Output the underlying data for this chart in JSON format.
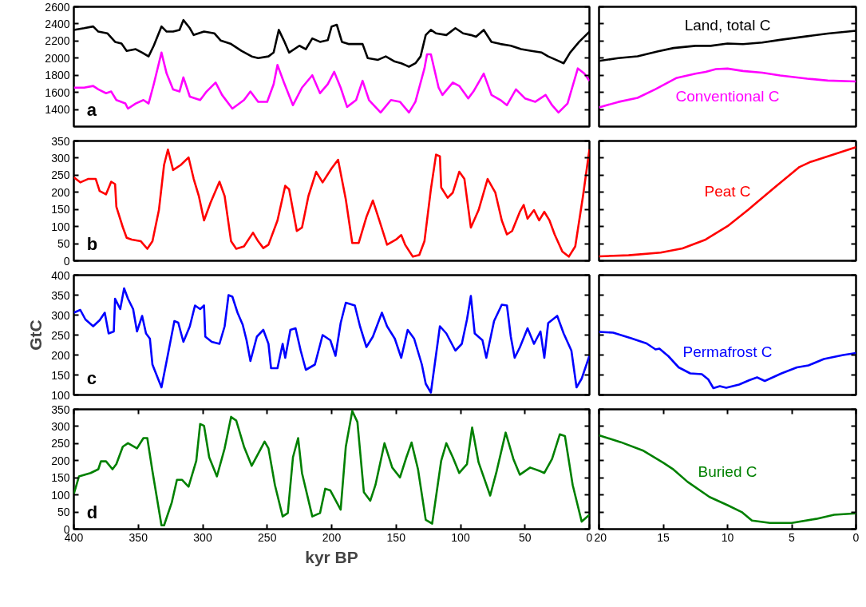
{
  "chart_data": [
    {
      "type": "line",
      "xlim": [
        400,
        0
      ],
      "ylim": [
        1200,
        2600
      ],
      "yticks": [
        1400,
        1600,
        1800,
        2000,
        2200,
        2400,
        2600
      ],
      "tick_labels": "y",
      "annotations": [
        "a"
      ],
      "series": [
        {
          "color": "#000000",
          "x": [
            400,
            392,
            385,
            381,
            374,
            368,
            363,
            359,
            352,
            347,
            342,
            338,
            332,
            328,
            323,
            318,
            315,
            310,
            307,
            299,
            291,
            286,
            278,
            270,
            262,
            257,
            249,
            245,
            241,
            237,
            233,
            225,
            220,
            215,
            209,
            203,
            200,
            196,
            192,
            187,
            180,
            176,
            172,
            164,
            158,
            151,
            146,
            140,
            135,
            131,
            127,
            123,
            119,
            111,
            104,
            98,
            92,
            88,
            82,
            76,
            69,
            61,
            53,
            45,
            37,
            32,
            26,
            20,
            15,
            8,
            0
          ],
          "values": [
            2330,
            2350,
            2370,
            2310,
            2290,
            2190,
            2170,
            2085,
            2105,
            2065,
            2020,
            2145,
            2370,
            2310,
            2310,
            2330,
            2445,
            2350,
            2270,
            2310,
            2290,
            2205,
            2165,
            2085,
            2020,
            2000,
            2020,
            2065,
            2330,
            2205,
            2065,
            2145,
            2105,
            2230,
            2190,
            2210,
            2370,
            2390,
            2190,
            2165,
            2165,
            2165,
            2000,
            1980,
            2020,
            1960,
            1940,
            1900,
            1940,
            2020,
            2270,
            2330,
            2290,
            2270,
            2350,
            2290,
            2270,
            2250,
            2330,
            2190,
            2165,
            2145,
            2105,
            2085,
            2065,
            2020,
            1980,
            1940,
            2065,
            2190,
            2310
          ]
        },
        {
          "color": "#ff00ff",
          "x": [
            400,
            392,
            385,
            381,
            375,
            371,
            367,
            360,
            358,
            352,
            346,
            342,
            338,
            332,
            328,
            323,
            318,
            315,
            310,
            302,
            297,
            290,
            285,
            277,
            268,
            263,
            257,
            250,
            245,
            242,
            237,
            230,
            223,
            215,
            209,
            203,
            198,
            193,
            188,
            181,
            176,
            171,
            162,
            154,
            147,
            140,
            135,
            128,
            126,
            123,
            117,
            114,
            106,
            101,
            94,
            90,
            82,
            76,
            69,
            64,
            57,
            50,
            42,
            34,
            29,
            24,
            17,
            9,
            4,
            0
          ],
          "values": [
            1655,
            1655,
            1675,
            1635,
            1590,
            1610,
            1510,
            1470,
            1410,
            1470,
            1510,
            1470,
            1695,
            2065,
            1820,
            1635,
            1610,
            1775,
            1550,
            1510,
            1610,
            1715,
            1570,
            1410,
            1510,
            1610,
            1490,
            1490,
            1695,
            1920,
            1715,
            1450,
            1655,
            1800,
            1590,
            1695,
            1840,
            1655,
            1430,
            1510,
            1735,
            1510,
            1365,
            1510,
            1490,
            1365,
            1490,
            1880,
            2045,
            2045,
            1655,
            1570,
            1715,
            1675,
            1530,
            1610,
            1820,
            1570,
            1510,
            1450,
            1635,
            1530,
            1490,
            1570,
            1450,
            1365,
            1470,
            1880,
            1820,
            1735
          ]
        }
      ]
    },
    {
      "type": "line",
      "xlim": [
        20,
        0
      ],
      "ylim": [
        1200,
        2600
      ],
      "yticks": [
        1400,
        1600,
        1800,
        2000,
        2200,
        2400,
        2600
      ],
      "tick_labels": false,
      "series": [
        {
          "name": "Land, total C",
          "color": "#000000",
          "x": [
            20,
            18.5,
            17,
            15.4,
            14.2,
            12.5,
            11.3,
            10,
            8.8,
            7.3,
            5.9,
            3.8,
            2.2,
            0
          ],
          "values": [
            1968,
            2000,
            2022,
            2080,
            2118,
            2144,
            2144,
            2170,
            2163,
            2182,
            2214,
            2256,
            2288,
            2320
          ]
        },
        {
          "name": "Conventional C",
          "color": "#ff00ff",
          "x": [
            20,
            18.5,
            17,
            15.6,
            14,
            12.5,
            11.7,
            10.9,
            10,
            8.8,
            7.3,
            5.9,
            3.8,
            2.2,
            0
          ],
          "values": [
            1424,
            1488,
            1536,
            1638,
            1766,
            1818,
            1840,
            1872,
            1878,
            1850,
            1830,
            1798,
            1760,
            1738,
            1728
          ]
        }
      ]
    },
    {
      "type": "line",
      "xlim": [
        400,
        0
      ],
      "ylim": [
        0,
        350
      ],
      "yticks": [
        0,
        50,
        100,
        150,
        200,
        250,
        300,
        350
      ],
      "tick_labels": "y",
      "annotations": [
        "b"
      ],
      "series": [
        {
          "color": "#ff0000",
          "x": [
            400,
            395,
            389,
            383,
            380,
            375,
            371,
            368,
            367,
            362,
            359,
            355,
            348,
            343,
            339,
            334,
            330,
            327,
            323,
            317,
            311,
            307,
            303,
            299,
            294,
            287,
            283,
            278,
            274,
            268,
            261,
            257,
            253,
            249,
            242,
            236,
            233,
            227,
            223,
            218,
            212,
            207,
            200,
            195,
            189,
            184,
            179,
            173,
            168,
            163,
            157,
            150,
            146,
            143,
            137,
            132,
            128,
            123,
            119,
            116,
            115,
            110,
            106,
            101,
            97,
            92,
            86,
            79,
            73,
            68,
            64,
            60,
            54,
            51,
            48,
            43,
            39,
            35,
            31,
            27,
            21,
            16,
            11,
            5,
            0
          ],
          "values": [
            244,
            229,
            239,
            239,
            204,
            194,
            231,
            224,
            158,
            98,
            67,
            62,
            57,
            35,
            57,
            148,
            280,
            325,
            265,
            280,
            302,
            239,
            189,
            118,
            169,
            231,
            189,
            57,
            35,
            42,
            82,
            57,
            37,
            47,
            118,
            219,
            209,
            87,
            97,
            189,
            260,
            229,
            270,
            295,
            179,
            52,
            52,
            128,
            176,
            118,
            47,
            62,
            75,
            47,
            12,
            17,
            57,
            209,
            310,
            305,
            214,
            184,
            199,
            260,
            239,
            97,
            148,
            239,
            199,
            118,
            77,
            87,
            143,
            163,
            123,
            148,
            118,
            143,
            118,
            77,
            27,
            12,
            42,
            189,
            325
          ]
        }
      ]
    },
    {
      "type": "line",
      "xlim": [
        20,
        0
      ],
      "ylim": [
        0,
        350
      ],
      "yticks": [
        0,
        50,
        100,
        150,
        200,
        250,
        300,
        350
      ],
      "tick_labels": false,
      "series": [
        {
          "name": "Peat C",
          "color": "#ff0000",
          "x": [
            20,
            17.7,
            15.2,
            13.5,
            11.7,
            10,
            8.4,
            6.3,
            4.4,
            3.6,
            2.1,
            0
          ],
          "values": [
            13,
            16,
            24,
            36,
            62,
            101,
            149,
            215,
            274,
            288,
            306,
            332
          ]
        }
      ]
    },
    {
      "type": "line",
      "xlim": [
        400,
        0
      ],
      "ylim": [
        100,
        400
      ],
      "yticks": [
        100,
        150,
        200,
        250,
        300,
        350,
        400
      ],
      "tick_labels": "y",
      "ylabel": "GtC",
      "annotations": [
        "c"
      ],
      "series": [
        {
          "color": "#0000ff",
          "x": [
            400,
            395,
            391,
            385,
            380,
            376,
            373,
            369,
            368,
            364,
            361,
            358,
            354,
            351,
            347,
            344,
            341,
            339,
            332,
            328,
            322,
            319,
            315,
            310,
            306,
            302,
            299,
            298,
            293,
            287,
            283,
            280,
            277,
            273,
            269,
            266,
            263,
            258,
            253,
            249,
            247,
            242,
            238,
            236,
            232,
            228,
            224,
            220,
            213,
            207,
            201,
            197,
            193,
            189,
            182,
            178,
            173,
            168,
            161,
            157,
            151,
            146,
            141,
            136,
            130,
            127,
            123,
            116,
            111,
            104,
            99,
            95,
            92,
            89,
            83,
            80,
            74,
            68,
            64,
            61,
            58,
            54,
            48,
            43,
            38,
            35,
            32,
            25,
            20,
            14,
            10,
            6,
            0
          ],
          "values": [
            306,
            313,
            289,
            272,
            287,
            306,
            254,
            259,
            341,
            315,
            367,
            341,
            315,
            259,
            298,
            254,
            241,
            176,
            119,
            185,
            285,
            281,
            233,
            272,
            324,
            315,
            324,
            246,
            233,
            228,
            272,
            350,
            346,
            306,
            276,
            237,
            185,
            246,
            263,
            228,
            167,
            167,
            228,
            193,
            263,
            267,
            211,
            163,
            176,
            250,
            237,
            198,
            280,
            331,
            324,
            272,
            220,
            246,
            306,
            272,
            241,
            193,
            263,
            241,
            176,
            128,
            106,
            272,
            254,
            211,
            228,
            289,
            348,
            254,
            237,
            193,
            285,
            326,
            324,
            246,
            193,
            219,
            267,
            228,
            259,
            193,
            280,
            298,
            254,
            211,
            119,
            141,
            198
          ]
        }
      ]
    },
    {
      "type": "line",
      "xlim": [
        20,
        0
      ],
      "ylim": [
        100,
        400
      ],
      "yticks": [
        100,
        150,
        200,
        250,
        300,
        350,
        400
      ],
      "tick_labels": false,
      "series": [
        {
          "name": "Permafrost C",
          "color": "#0000ff",
          "x": [
            20,
            18.9,
            17.5,
            16.3,
            15.6,
            15.3,
            14.6,
            13.8,
            12.9,
            12,
            11.5,
            11.1,
            10.6,
            10.1,
            9.1,
            8.3,
            7.7,
            7.1,
            5.8,
            4.6,
            3.7,
            2.5,
            1,
            0
          ],
          "values": [
            258,
            256,
            242,
            229,
            214,
            216,
            197,
            169,
            154,
            152,
            139,
            117,
            122,
            118,
            126,
            137,
            144,
            135,
            154,
            169,
            174,
            190,
            200,
            205
          ]
        }
      ]
    },
    {
      "type": "line",
      "xlim": [
        400,
        0
      ],
      "ylim": [
        0,
        350
      ],
      "xticks": [
        400,
        350,
        300,
        250,
        200,
        150,
        100,
        50,
        0
      ],
      "yticks": [
        0,
        50,
        100,
        150,
        200,
        250,
        300,
        350
      ],
      "xlabel": "kyr BP",
      "annotations": [
        "d"
      ],
      "series": [
        {
          "color": "#008000",
          "x": [
            400,
            396,
            387,
            381,
            379,
            375,
            370,
            367,
            362,
            358,
            351,
            346,
            343,
            339,
            332,
            330,
            324,
            320,
            316,
            311,
            305,
            302,
            299,
            295,
            289,
            283,
            278,
            274,
            268,
            262,
            257,
            252,
            249,
            244,
            238,
            234,
            230,
            226,
            223,
            215,
            209,
            205,
            201,
            196,
            193,
            189,
            184,
            180,
            175,
            170,
            166,
            159,
            153,
            147,
            142,
            138,
            133,
            127,
            122,
            115,
            111,
            106,
            101,
            95,
            91,
            86,
            77,
            72,
            65,
            59,
            54,
            46,
            38,
            35,
            29,
            23,
            19,
            13,
            6,
            0
          ],
          "values": [
            103,
            154,
            164,
            175,
            198,
            198,
            175,
            190,
            241,
            251,
            236,
            266,
            266,
            169,
            11,
            11,
            78,
            144,
            144,
            124,
            200,
            307,
            302,
            210,
            154,
            236,
            328,
            317,
            241,
            185,
            220,
            256,
            236,
            129,
            37,
            47,
            210,
            266,
            164,
            37,
            47,
            118,
            113,
            78,
            57,
            241,
            345,
            313,
            108,
            83,
            129,
            251,
            180,
            151,
            210,
            253,
            175,
            27,
            16,
            200,
            251,
            210,
            164,
            190,
            297,
            195,
            98,
            169,
            282,
            205,
            159,
            180,
            169,
            164,
            205,
            277,
            272,
            129,
            22,
            42
          ]
        }
      ]
    },
    {
      "type": "line",
      "xlim": [
        20,
        0
      ],
      "ylim": [
        0,
        350
      ],
      "xticks": [
        20,
        15,
        10,
        5,
        0
      ],
      "yticks": [
        0,
        50,
        100,
        150,
        200,
        250,
        300,
        350
      ],
      "tick_labels": "x",
      "series": [
        {
          "name": "Buried C",
          "color": "#008000",
          "x": [
            20,
            18.3,
            16.6,
            15,
            14.2,
            13.1,
            11.4,
            10,
            8.9,
            8.1,
            6.7,
            5,
            3.1,
            1.7,
            0
          ],
          "values": [
            274,
            254,
            230,
            194,
            174,
            138,
            94,
            70,
            50,
            25,
            18,
            18,
            30,
            42,
            46
          ]
        }
      ]
    }
  ]
}
